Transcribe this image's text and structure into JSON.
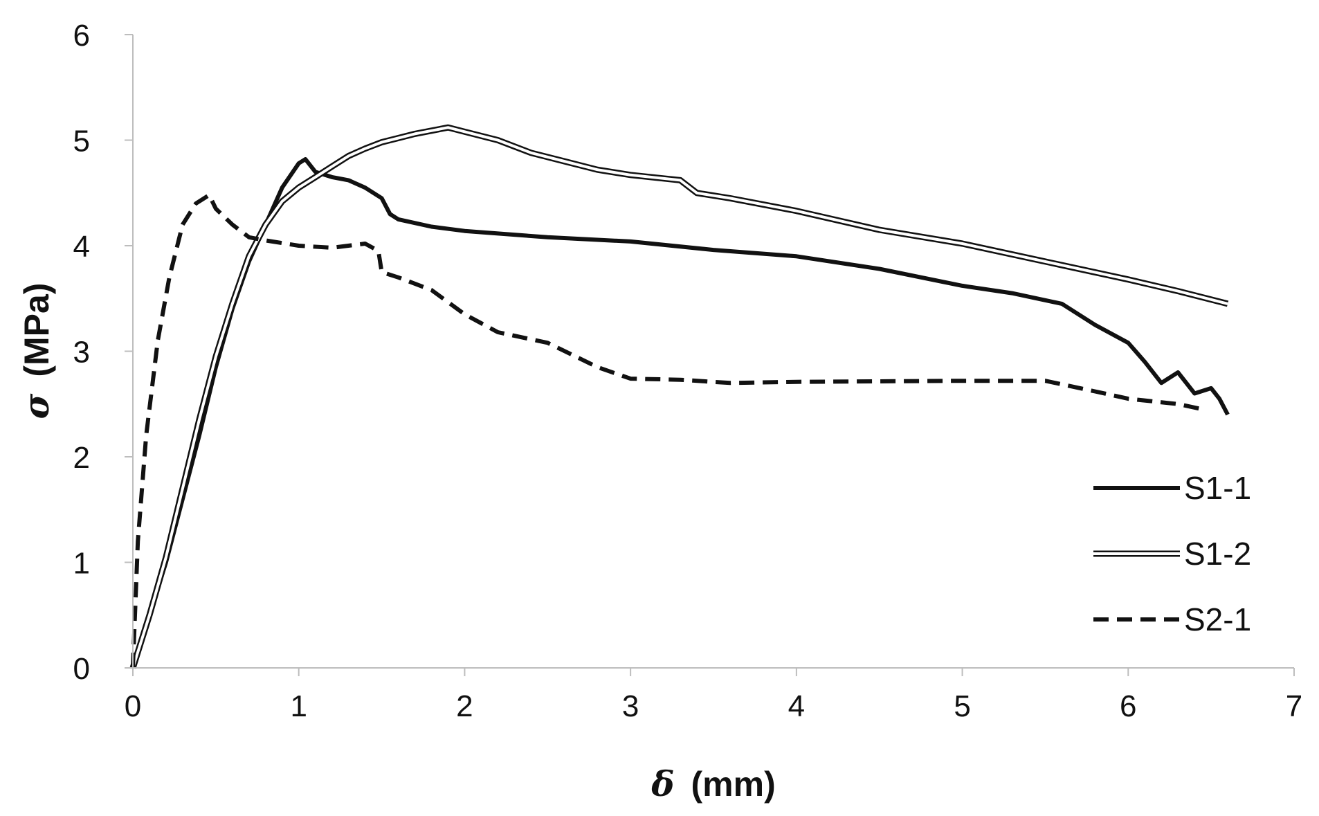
{
  "chart_data": {
    "type": "line",
    "xlabel_symbol": "δ",
    "xlabel_unit": "(mm)",
    "ylabel_symbol": "σ",
    "ylabel_unit": "(MPa)",
    "xlim": [
      0,
      7
    ],
    "ylim": [
      0,
      6
    ],
    "xticks": [
      "0",
      "1",
      "2",
      "3",
      "4",
      "5",
      "6",
      "7"
    ],
    "yticks": [
      "0",
      "1",
      "2",
      "3",
      "4",
      "5",
      "6"
    ],
    "grid": false,
    "legend_position": "lower-right",
    "series": [
      {
        "name": "S1-1",
        "style": "solid",
        "points": [
          [
            0,
            0
          ],
          [
            0.1,
            0.5
          ],
          [
            0.2,
            1.0
          ],
          [
            0.3,
            1.6
          ],
          [
            0.4,
            2.2
          ],
          [
            0.5,
            2.85
          ],
          [
            0.6,
            3.4
          ],
          [
            0.7,
            3.85
          ],
          [
            0.8,
            4.2
          ],
          [
            0.9,
            4.55
          ],
          [
            1.0,
            4.78
          ],
          [
            1.04,
            4.82
          ],
          [
            1.1,
            4.7
          ],
          [
            1.2,
            4.65
          ],
          [
            1.3,
            4.62
          ],
          [
            1.4,
            4.55
          ],
          [
            1.5,
            4.45
          ],
          [
            1.55,
            4.3
          ],
          [
            1.6,
            4.25
          ],
          [
            1.8,
            4.18
          ],
          [
            2.0,
            4.14
          ],
          [
            2.5,
            4.08
          ],
          [
            3.0,
            4.04
          ],
          [
            3.5,
            3.96
          ],
          [
            4.0,
            3.9
          ],
          [
            4.5,
            3.78
          ],
          [
            5.0,
            3.62
          ],
          [
            5.3,
            3.55
          ],
          [
            5.6,
            3.45
          ],
          [
            5.8,
            3.25
          ],
          [
            6.0,
            3.08
          ],
          [
            6.1,
            2.9
          ],
          [
            6.2,
            2.7
          ],
          [
            6.3,
            2.8
          ],
          [
            6.4,
            2.6
          ],
          [
            6.5,
            2.65
          ],
          [
            6.55,
            2.55
          ],
          [
            6.6,
            2.4
          ]
        ]
      },
      {
        "name": "S1-2",
        "style": "double",
        "points": [
          [
            0,
            0
          ],
          [
            0.1,
            0.5
          ],
          [
            0.2,
            1.05
          ],
          [
            0.3,
            1.7
          ],
          [
            0.4,
            2.35
          ],
          [
            0.5,
            2.95
          ],
          [
            0.6,
            3.45
          ],
          [
            0.7,
            3.9
          ],
          [
            0.8,
            4.2
          ],
          [
            0.9,
            4.42
          ],
          [
            1.0,
            4.55
          ],
          [
            1.1,
            4.65
          ],
          [
            1.2,
            4.75
          ],
          [
            1.3,
            4.85
          ],
          [
            1.4,
            4.92
          ],
          [
            1.5,
            4.98
          ],
          [
            1.6,
            5.02
          ],
          [
            1.7,
            5.06
          ],
          [
            1.8,
            5.09
          ],
          [
            1.9,
            5.12
          ],
          [
            2.0,
            5.08
          ],
          [
            2.2,
            5.0
          ],
          [
            2.4,
            4.88
          ],
          [
            2.6,
            4.8
          ],
          [
            2.8,
            4.72
          ],
          [
            3.0,
            4.67
          ],
          [
            3.3,
            4.62
          ],
          [
            3.4,
            4.5
          ],
          [
            3.6,
            4.45
          ],
          [
            4.0,
            4.33
          ],
          [
            4.5,
            4.15
          ],
          [
            5.0,
            4.02
          ],
          [
            5.5,
            3.85
          ],
          [
            6.0,
            3.68
          ],
          [
            6.3,
            3.57
          ],
          [
            6.6,
            3.45
          ]
        ]
      },
      {
        "name": "S2-1",
        "style": "dashed",
        "points": [
          [
            0,
            0
          ],
          [
            0.03,
            1.2
          ],
          [
            0.08,
            2.2
          ],
          [
            0.15,
            3.1
          ],
          [
            0.22,
            3.7
          ],
          [
            0.3,
            4.2
          ],
          [
            0.38,
            4.4
          ],
          [
            0.46,
            4.48
          ],
          [
            0.5,
            4.35
          ],
          [
            0.6,
            4.2
          ],
          [
            0.7,
            4.08
          ],
          [
            0.8,
            4.05
          ],
          [
            1.0,
            4.0
          ],
          [
            1.2,
            3.98
          ],
          [
            1.4,
            4.02
          ],
          [
            1.48,
            3.95
          ],
          [
            1.5,
            3.75
          ],
          [
            1.6,
            3.7
          ],
          [
            1.8,
            3.58
          ],
          [
            2.0,
            3.35
          ],
          [
            2.2,
            3.18
          ],
          [
            2.5,
            3.08
          ],
          [
            2.8,
            2.85
          ],
          [
            3.0,
            2.74
          ],
          [
            3.3,
            2.73
          ],
          [
            3.6,
            2.7
          ],
          [
            4.0,
            2.71
          ],
          [
            5.0,
            2.72
          ],
          [
            5.5,
            2.72
          ],
          [
            5.8,
            2.62
          ],
          [
            6.0,
            2.55
          ],
          [
            6.3,
            2.5
          ],
          [
            6.45,
            2.45
          ]
        ]
      }
    ]
  }
}
